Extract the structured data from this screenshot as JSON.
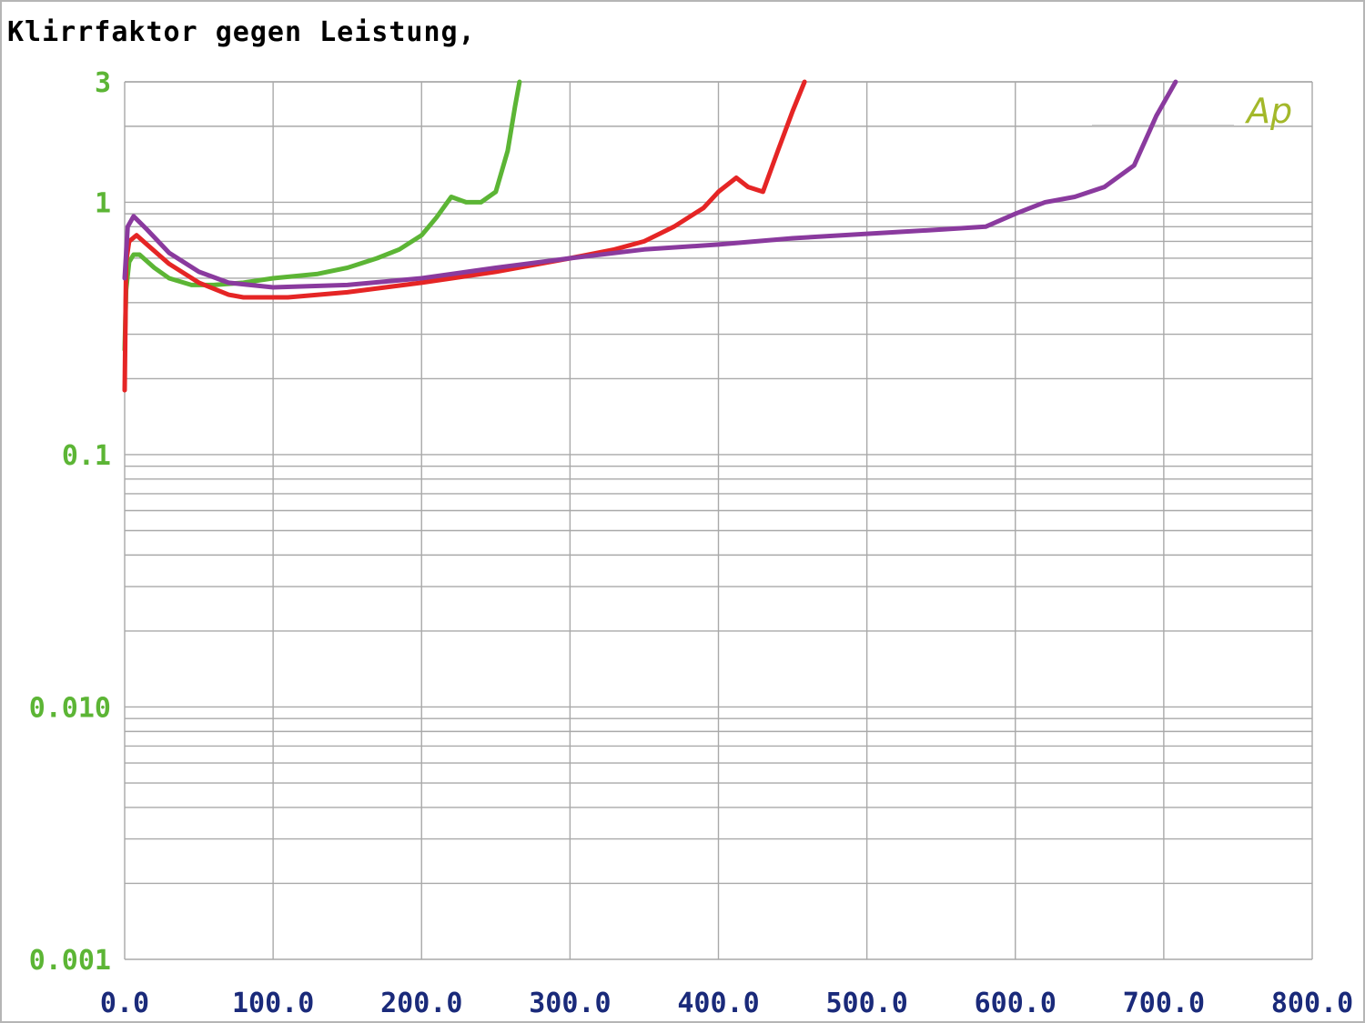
{
  "chart_data": {
    "type": "line",
    "title": "Klirrfaktor gegen Leistung,",
    "xlabel": "",
    "ylabel": "",
    "xlim": [
      0,
      800
    ],
    "ylim": [
      0.001,
      3
    ],
    "y_scale": "log",
    "grid": true,
    "x_ticks": [
      "0.0",
      "100.0",
      "200.0",
      "300.0",
      "400.0",
      "500.0",
      "600.0",
      "700.0",
      "800.0"
    ],
    "y_ticks": [
      {
        "value": 3,
        "label": "3"
      },
      {
        "value": 1,
        "label": "1"
      },
      {
        "value": 0.1,
        "label": "0.1"
      },
      {
        "value": 0.01,
        "label": "0.010"
      },
      {
        "value": 0.001,
        "label": "0.001"
      }
    ],
    "annotation": "Ap",
    "series": [
      {
        "color": "#5cb535",
        "points": [
          [
            0,
            0.26
          ],
          [
            1,
            0.45
          ],
          [
            3,
            0.58
          ],
          [
            6,
            0.62
          ],
          [
            10,
            0.62
          ],
          [
            20,
            0.55
          ],
          [
            30,
            0.5
          ],
          [
            45,
            0.47
          ],
          [
            60,
            0.47
          ],
          [
            80,
            0.48
          ],
          [
            100,
            0.5
          ],
          [
            130,
            0.52
          ],
          [
            150,
            0.55
          ],
          [
            170,
            0.6
          ],
          [
            185,
            0.65
          ],
          [
            200,
            0.74
          ],
          [
            210,
            0.87
          ],
          [
            220,
            1.05
          ],
          [
            230,
            1.0
          ],
          [
            240,
            1.0
          ],
          [
            250,
            1.1
          ],
          [
            258,
            1.6
          ],
          [
            263,
            2.4
          ],
          [
            266,
            3.0
          ]
        ]
      },
      {
        "color": "#e52525",
        "points": [
          [
            0,
            0.18
          ],
          [
            1,
            0.58
          ],
          [
            3,
            0.7
          ],
          [
            8,
            0.74
          ],
          [
            15,
            0.68
          ],
          [
            30,
            0.57
          ],
          [
            50,
            0.48
          ],
          [
            70,
            0.43
          ],
          [
            80,
            0.42
          ],
          [
            110,
            0.42
          ],
          [
            150,
            0.44
          ],
          [
            200,
            0.48
          ],
          [
            250,
            0.53
          ],
          [
            300,
            0.6
          ],
          [
            330,
            0.65
          ],
          [
            350,
            0.7
          ],
          [
            370,
            0.8
          ],
          [
            390,
            0.95
          ],
          [
            400,
            1.1
          ],
          [
            412,
            1.25
          ],
          [
            420,
            1.15
          ],
          [
            430,
            1.1
          ],
          [
            440,
            1.6
          ],
          [
            450,
            2.3
          ],
          [
            458,
            3.0
          ]
        ]
      },
      {
        "color": "#8a3a9e",
        "points": [
          [
            0,
            0.5
          ],
          [
            2,
            0.8
          ],
          [
            6,
            0.88
          ],
          [
            15,
            0.78
          ],
          [
            30,
            0.63
          ],
          [
            50,
            0.53
          ],
          [
            70,
            0.48
          ],
          [
            100,
            0.46
          ],
          [
            150,
            0.47
          ],
          [
            200,
            0.5
          ],
          [
            250,
            0.55
          ],
          [
            300,
            0.6
          ],
          [
            350,
            0.65
          ],
          [
            400,
            0.68
          ],
          [
            450,
            0.72
          ],
          [
            500,
            0.75
          ],
          [
            550,
            0.78
          ],
          [
            580,
            0.8
          ],
          [
            600,
            0.9
          ],
          [
            620,
            1.0
          ],
          [
            640,
            1.05
          ],
          [
            660,
            1.15
          ],
          [
            680,
            1.4
          ],
          [
            695,
            2.2
          ],
          [
            708,
            3.0
          ]
        ]
      }
    ]
  }
}
